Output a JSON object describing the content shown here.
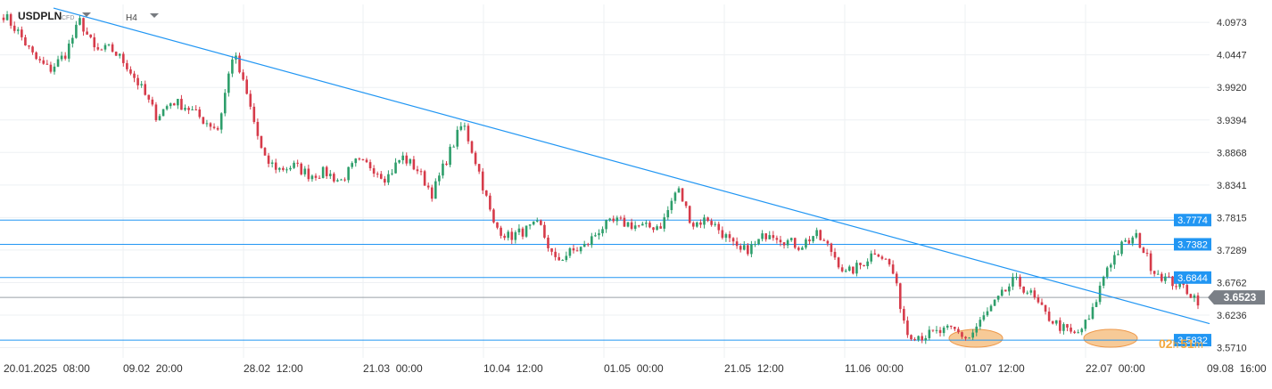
{
  "header": {
    "symbol": "USDPLN",
    "instrument_type": "CFD",
    "timeframe": "H4"
  },
  "countdown": {
    "hours": "02",
    "h_unit": "h",
    "minutes": "51",
    "m_unit": "m"
  },
  "colors": {
    "bull": "#2e9e6b",
    "bear": "#d63b4a",
    "trend": "#2196f3",
    "level": "#2196f3",
    "badge": "#2196f3",
    "current_badge": "#7a7f86",
    "countdown": "#f3a73c",
    "highlight_fill": "#f6c48c",
    "highlight_stroke": "#ee9a4d",
    "grid": "#eef0f3",
    "axis_text": "#333333"
  },
  "chart_data": {
    "type": "candlestick",
    "y_axis": {
      "ticks": [
        "4.0973",
        "4.0447",
        "3.9920",
        "3.9394",
        "3.8868",
        "3.8341",
        "3.7815",
        "3.7289",
        "3.6762",
        "3.6236",
        "3.5710"
      ],
      "range": [
        3.5545,
        4.1263
      ]
    },
    "x_axis": {
      "labels": [
        "20.01.2025  08:00",
        "09.02  20:00",
        "28.02  12:00",
        "21.03  00:00",
        "10.04  12:00",
        "01.05  00:00",
        "21.05  12:00",
        "11.06  00:00",
        "01.07  12:00",
        "22.07  00:00",
        "09.08  16:00"
      ]
    },
    "grid": true,
    "horizontal_levels": [
      {
        "value": 3.7774,
        "label": "3.7774"
      },
      {
        "value": 3.7382,
        "label": "3.7382"
      },
      {
        "value": 3.6844,
        "label": "3.6844"
      },
      {
        "value": 3.5832,
        "label": "3.5832"
      }
    ],
    "current_price": {
      "value": 3.6523,
      "label": "3.6523"
    },
    "trendline": {
      "start_value": 4.1205,
      "end_value": 3.6098
    },
    "highlights": [
      {
        "center_value": 3.589,
        "position": "around 01.07"
      },
      {
        "center_value": 3.589,
        "position": "around 22.07"
      }
    ],
    "price_path": [
      4.11,
      4.08,
      4.04,
      4.02,
      4.045,
      4.1,
      4.05,
      4.055,
      4.03,
      3.99,
      3.945,
      3.97,
      3.96,
      3.94,
      3.925,
      4.05,
      3.97,
      3.875,
      3.86,
      3.865,
      3.85,
      3.855,
      3.84,
      3.87,
      3.865,
      3.845,
      3.88,
      3.86,
      3.82,
      3.88,
      3.935,
      3.86,
      3.77,
      3.75,
      3.76,
      3.77,
      3.71,
      3.725,
      3.735,
      3.765,
      3.775,
      3.77,
      3.765,
      3.77,
      3.83,
      3.77,
      3.78,
      3.755,
      3.725,
      3.735,
      3.76,
      3.745,
      3.735,
      3.755,
      3.73,
      3.69,
      3.705,
      3.73,
      3.7,
      3.595,
      3.59,
      3.595,
      3.6,
      3.585,
      3.62,
      3.65,
      3.68,
      3.66,
      3.625,
      3.605,
      3.59,
      3.62,
      3.7,
      3.735,
      3.75,
      3.7,
      3.68,
      3.67,
      3.648
    ]
  }
}
